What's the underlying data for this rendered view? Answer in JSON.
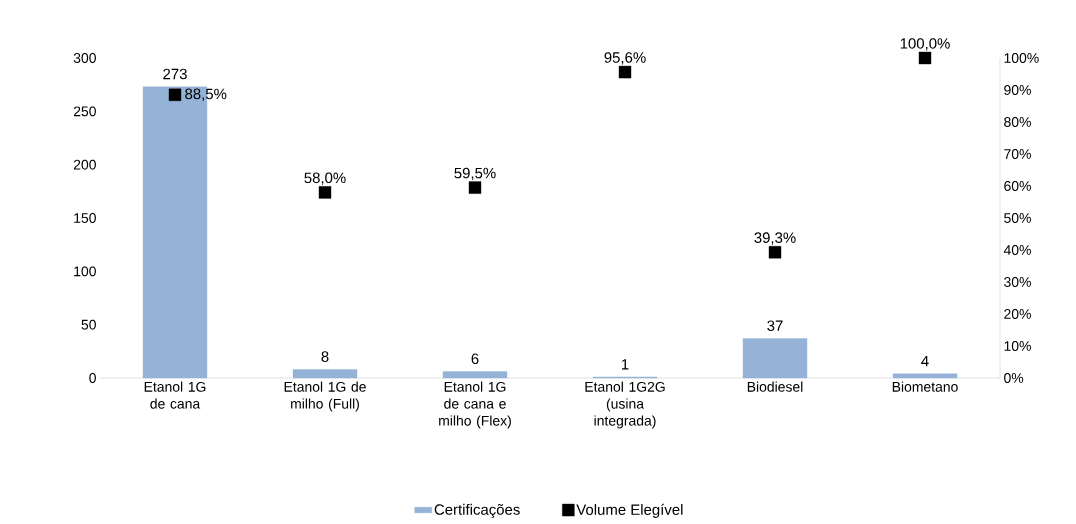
{
  "chart_data": {
    "type": "bar",
    "categories": [
      "Etanol 1G de cana",
      "Etanol 1G de milho (Full)",
      "Etanol 1G de cana e milho (Flex)",
      "Etanol 1G2G (usina integrada)",
      "Biodiesel",
      "Biometano"
    ],
    "series": [
      {
        "name": "Certificações",
        "color": "#95b3d7",
        "values": [
          273,
          8,
          6,
          1,
          37,
          4
        ],
        "value_labels": [
          "273",
          "8",
          "6",
          "1",
          "37",
          "4"
        ]
      },
      {
        "name": "Volume Elegível",
        "type": "scatter",
        "axis": "y2",
        "marker": "square",
        "color": "#000000",
        "values": [
          88.5,
          58.0,
          59.5,
          95.6,
          39.3,
          100.0
        ],
        "value_labels": [
          "88,5%",
          "58,0%",
          "59,5%",
          "95,6%",
          "39,3%",
          "100,0%"
        ]
      }
    ],
    "ylim": [
      0,
      300
    ],
    "yticks": [
      0,
      50,
      100,
      150,
      200,
      250,
      300
    ],
    "y2lim": [
      0,
      100
    ],
    "y2ticks": [
      {
        "value": 0,
        "label": "0%"
      },
      {
        "value": 10,
        "label": "10%"
      },
      {
        "value": 20,
        "label": "20%"
      },
      {
        "value": 30,
        "label": "30%"
      },
      {
        "value": 40,
        "label": "40%"
      },
      {
        "value": 50,
        "label": "50%"
      },
      {
        "value": 60,
        "label": "60%"
      },
      {
        "value": 70,
        "label": "70%"
      },
      {
        "value": 80,
        "label": "80%"
      },
      {
        "value": 90,
        "label": "90%"
      },
      {
        "value": 100,
        "label": "100%"
      }
    ],
    "grid": false,
    "legend": "bottom"
  }
}
